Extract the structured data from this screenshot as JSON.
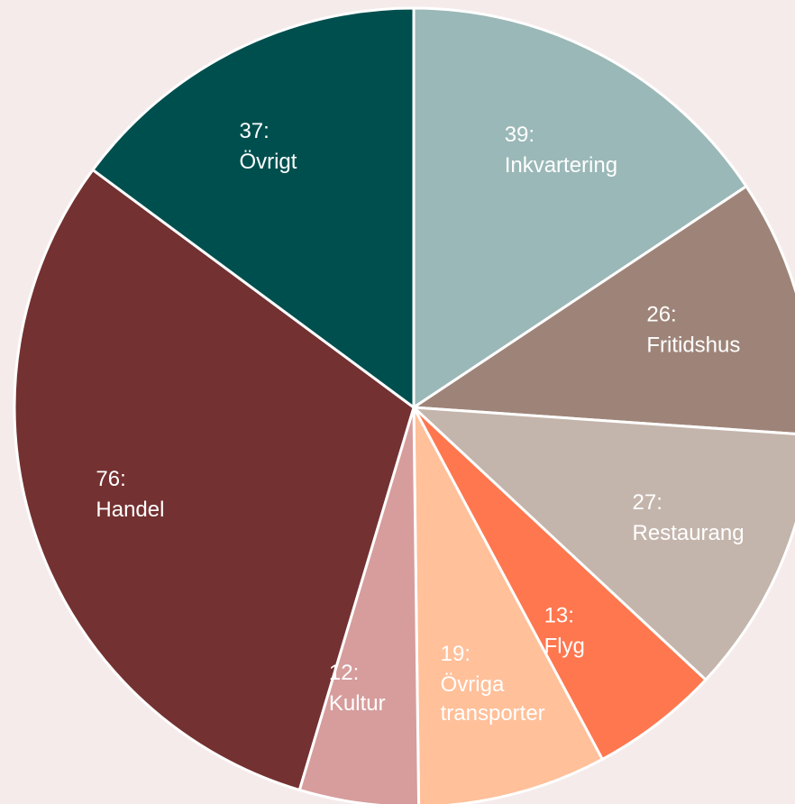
{
  "chart_data": {
    "type": "pie",
    "categories": [
      "Inkvartering",
      "Fritidshus",
      "Restaurang",
      "Flyg",
      "Övriga transporter",
      "Kultur",
      "Handel",
      "Övrigt"
    ],
    "values": [
      39,
      26,
      27,
      13,
      19,
      12,
      76,
      37
    ],
    "value_labels": [
      "39:",
      "26:",
      "27:",
      "13:",
      "19:",
      "12:",
      "76:",
      "37:"
    ],
    "colors": [
      "#9ab8b7",
      "#9e8478",
      "#c4b5ac",
      "#ff774f",
      "#ffc09a",
      "#d69d9c",
      "#743131",
      "#004f4f"
    ]
  }
}
